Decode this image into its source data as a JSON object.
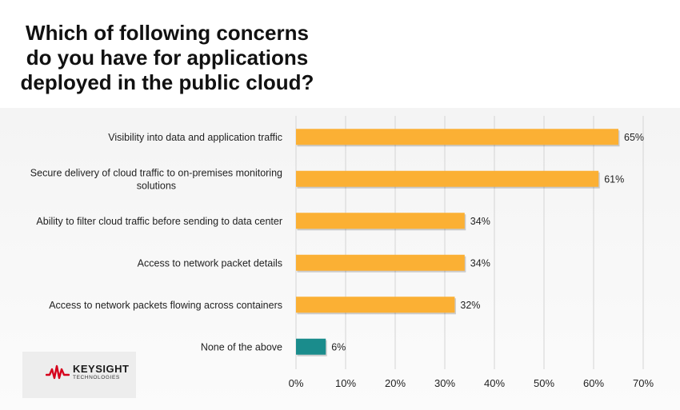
{
  "title": "Which of following concerns\ndo you have for applications\ndeployed in the public cloud?",
  "logo": {
    "brand": "KEYSIGHT",
    "sub": "TECHNOLOGIES",
    "color": "#d6001c"
  },
  "chart_data": {
    "type": "bar",
    "orientation": "horizontal",
    "categories": [
      [
        "Visibility into data and application traffic"
      ],
      [
        "Secure delivery of cloud traffic to on-premises monitoring",
        "solutions"
      ],
      [
        "Ability to filter cloud traffic before sending to data center"
      ],
      [
        "Access to network packet details"
      ],
      [
        "Access to network packets flowing across containers"
      ],
      [
        "None of the above"
      ]
    ],
    "values": [
      65,
      61,
      34,
      34,
      32,
      6
    ],
    "value_labels": [
      "65%",
      "61%",
      "34%",
      "34%",
      "32%",
      "6%"
    ],
    "bar_colors": [
      "#fbb034",
      "#fbb034",
      "#fbb034",
      "#fbb034",
      "#fbb034",
      "#1a8c8c"
    ],
    "xlim": [
      0,
      70
    ],
    "xticks": [
      0,
      10,
      20,
      30,
      40,
      50,
      60,
      70
    ],
    "xtick_labels": [
      "0%",
      "10%",
      "20%",
      "30%",
      "40%",
      "50%",
      "60%",
      "70%"
    ],
    "grid": true,
    "legend": false
  }
}
